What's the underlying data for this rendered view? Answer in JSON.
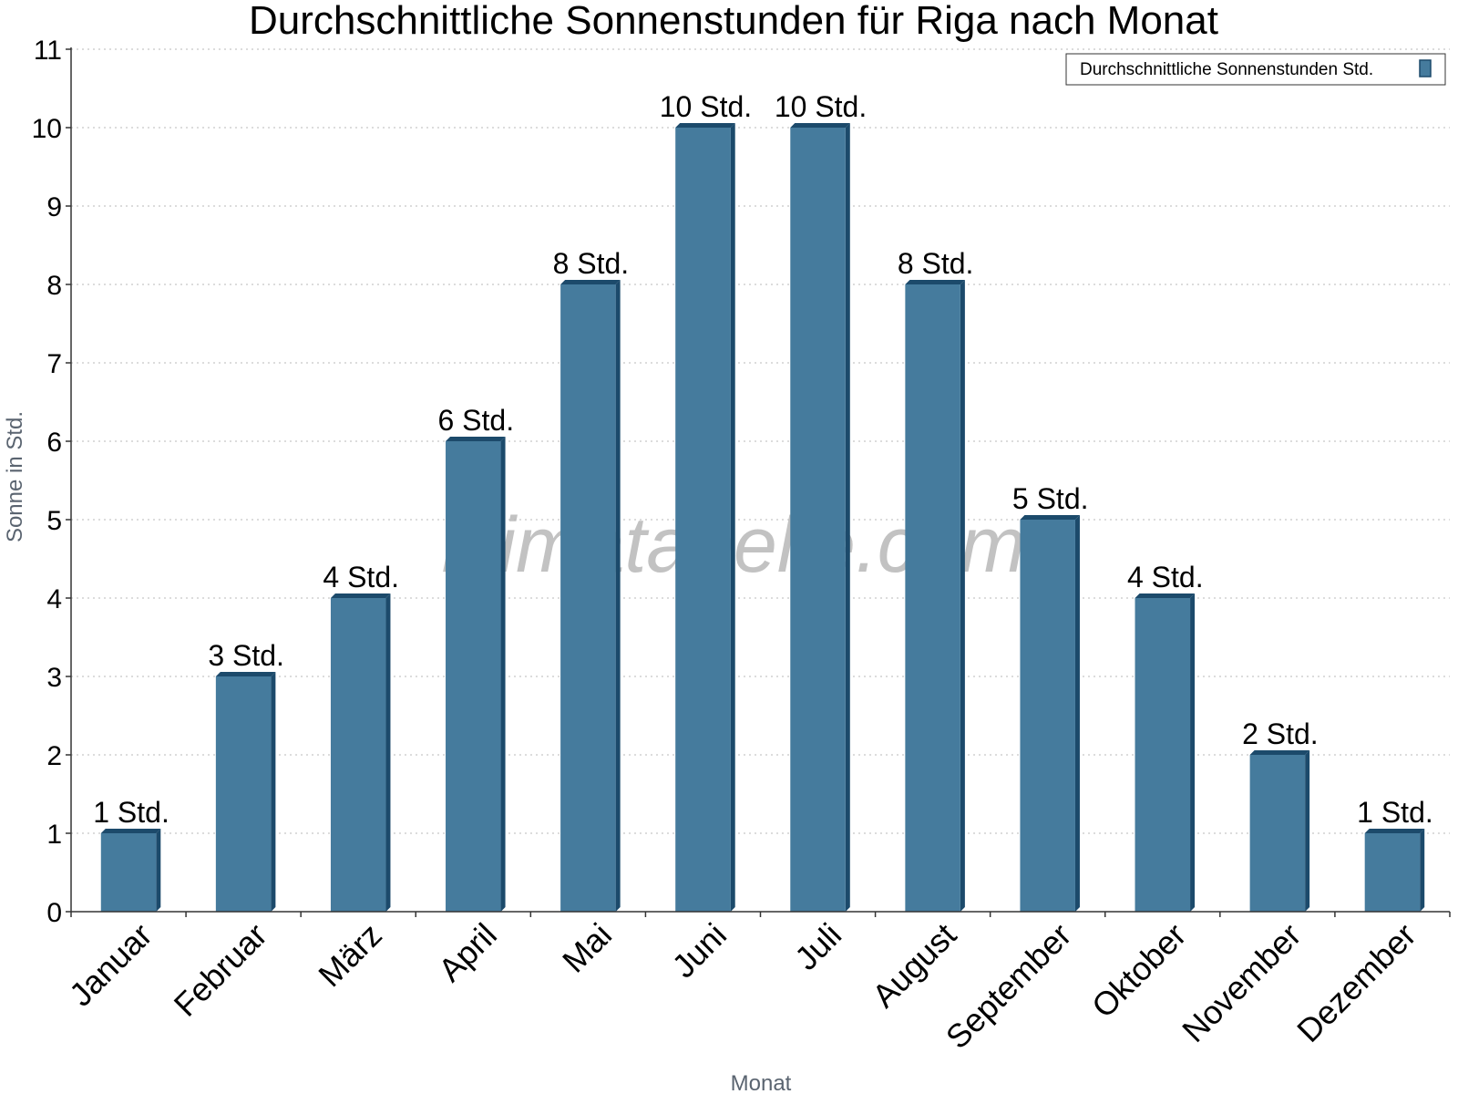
{
  "chart_data": {
    "type": "bar",
    "title": "Durchschnittliche Sonnenstunden für Riga nach Monat",
    "xlabel": "Monat",
    "ylabel": "Sonne in Std.",
    "ylim": [
      0,
      11
    ],
    "yticks": [
      0,
      1,
      2,
      3,
      4,
      5,
      6,
      7,
      8,
      9,
      10,
      11
    ],
    "grid": true,
    "legend_position": "top-right",
    "categories": [
      "Januar",
      "Februar",
      "März",
      "April",
      "Mai",
      "Juni",
      "Juli",
      "August",
      "September",
      "Oktober",
      "November",
      "Dezember"
    ],
    "series": [
      {
        "name": "Durchschnittliche Sonnenstunden Std.",
        "values": [
          1,
          3,
          4,
          6,
          8,
          10,
          10,
          8,
          5,
          4,
          2,
          1
        ],
        "data_labels": [
          "1 Std.",
          "3 Std.",
          "4 Std.",
          "6 Std.",
          "8 Std.",
          "10 Std.",
          "10 Std.",
          "8 Std.",
          "5 Std.",
          "4 Std.",
          "2 Std.",
          "1 Std."
        ],
        "color": "#457b9d",
        "edge_color": "#1c4a6b"
      }
    ]
  },
  "watermark": "klimatabelle.com"
}
